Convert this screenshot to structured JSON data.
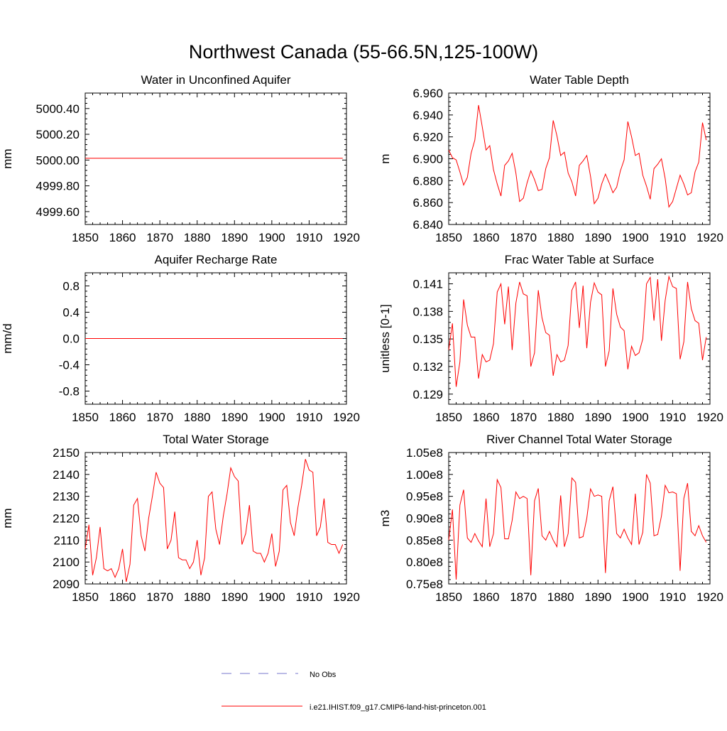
{
  "figure": {
    "title": "Northwest Canada (55-66.5N,125-100W)"
  },
  "legend": {
    "entries": [
      {
        "label": "No Obs",
        "color": "#7777cc",
        "style": "dashed"
      },
      {
        "label": "i.e21.IHIST.f09_g17.CMIP6-land-hist-princeton.001",
        "color": "#ff0000",
        "style": "solid"
      }
    ]
  },
  "colors": {
    "series": "#ff0000",
    "obs": "#7777cc",
    "axis": "#000000"
  },
  "chart_data": [
    {
      "type": "line",
      "title": "Water in Unconfined Aquifer",
      "ylabel": "mm",
      "xlim": [
        1850,
        1920
      ],
      "ylim": [
        4999.5,
        5000.52
      ],
      "xticks": [
        1850,
        1860,
        1870,
        1880,
        1890,
        1900,
        1910,
        1920
      ],
      "xtick_labels": [
        "1850",
        "1860",
        "1870",
        "1880",
        "1890",
        "1900",
        "1910",
        "1920"
      ],
      "yticks": [
        4999.6,
        4999.8,
        5000.0,
        5000.2,
        5000.4
      ],
      "ytick_labels": [
        "4999.60",
        "4999.80",
        "5000.00",
        "5000.20",
        "5000.40"
      ],
      "series": [
        {
          "x_start": 1850,
          "x_step": 1,
          "values": [
            5000.014,
            5000.014,
            5000.014,
            5000.014,
            5000.014,
            5000.014,
            5000.014,
            5000.014,
            5000.014,
            5000.014,
            5000.014,
            5000.014,
            5000.014,
            5000.014,
            5000.014,
            5000.014,
            5000.014,
            5000.014,
            5000.014,
            5000.014,
            5000.014,
            5000.014,
            5000.014,
            5000.014,
            5000.014,
            5000.014,
            5000.014,
            5000.014,
            5000.014,
            5000.014,
            5000.014,
            5000.014,
            5000.014,
            5000.014,
            5000.014,
            5000.014,
            5000.014,
            5000.014,
            5000.014,
            5000.014,
            5000.014,
            5000.014,
            5000.014,
            5000.014,
            5000.014,
            5000.014,
            5000.014,
            5000.014,
            5000.014,
            5000.014,
            5000.014,
            5000.014,
            5000.014,
            5000.014,
            5000.014,
            5000.014,
            5000.014,
            5000.014,
            5000.014,
            5000.014,
            5000.014,
            5000.014,
            5000.014,
            5000.014,
            5000.014,
            5000.014,
            5000.014,
            5000.014,
            5000.014,
            5000.014
          ]
        }
      ]
    },
    {
      "type": "line",
      "title": "Water Table Depth",
      "ylabel": "m",
      "xlim": [
        1850,
        1920
      ],
      "ylim": [
        6.84,
        6.96
      ],
      "xticks": [
        1850,
        1860,
        1870,
        1880,
        1890,
        1900,
        1910,
        1920
      ],
      "xtick_labels": [
        "1850",
        "1860",
        "1870",
        "1880",
        "1890",
        "1900",
        "1910",
        "1920"
      ],
      "yticks": [
        6.84,
        6.86,
        6.88,
        6.9,
        6.92,
        6.94,
        6.96
      ],
      "ytick_labels": [
        "6.840",
        "6.860",
        "6.880",
        "6.900",
        "6.920",
        "6.940",
        "6.960"
      ],
      "series": [
        {
          "x_start": 1850,
          "x_step": 1,
          "values": [
            6.908,
            6.901,
            6.899,
            6.888,
            6.876,
            6.883,
            6.905,
            6.917,
            6.949,
            6.929,
            6.908,
            6.912,
            6.89,
            6.877,
            6.866,
            6.894,
            6.898,
            6.905,
            6.887,
            6.861,
            6.864,
            6.878,
            6.889,
            6.881,
            6.871,
            6.872,
            6.891,
            6.901,
            6.935,
            6.921,
            6.903,
            6.906,
            6.887,
            6.879,
            6.866,
            6.894,
            6.898,
            6.903,
            6.884,
            6.859,
            6.864,
            6.877,
            6.886,
            6.878,
            6.869,
            6.874,
            6.889,
            6.899,
            6.934,
            6.92,
            6.903,
            6.905,
            6.885,
            6.875,
            6.863,
            6.891,
            6.895,
            6.9,
            6.882,
            6.856,
            6.861,
            6.873,
            6.885,
            6.877,
            6.867,
            6.869,
            6.888,
            6.897,
            6.933,
            6.917
          ]
        }
      ]
    },
    {
      "type": "line",
      "title": "Aquifer Recharge Rate",
      "ylabel": "mm/d",
      "xlim": [
        1850,
        1920
      ],
      "ylim": [
        -1.0,
        1.0
      ],
      "xticks": [
        1850,
        1860,
        1870,
        1880,
        1890,
        1900,
        1910,
        1920
      ],
      "xtick_labels": [
        "1850",
        "1860",
        "1870",
        "1880",
        "1890",
        "1900",
        "1910",
        "1920"
      ],
      "yticks": [
        -0.8,
        -0.4,
        0.0,
        0.4,
        0.8
      ],
      "ytick_labels": [
        "-0.8",
        "-0.4",
        "0.0",
        "0.4",
        "0.8"
      ],
      "series": [
        {
          "x_start": 1850,
          "x_step": 1,
          "values": [
            0,
            0,
            0,
            0,
            0,
            0,
            0,
            0,
            0,
            0,
            0,
            0,
            0,
            0,
            0,
            0,
            0,
            0,
            0,
            0,
            0,
            0,
            0,
            0,
            0,
            0,
            0,
            0,
            0,
            0,
            0,
            0,
            0,
            0,
            0,
            0,
            0,
            0,
            0,
            0,
            0,
            0,
            0,
            0,
            0,
            0,
            0,
            0,
            0,
            0,
            0,
            0,
            0,
            0,
            0,
            0,
            0,
            0,
            0,
            0,
            0,
            0,
            0,
            0,
            0,
            0,
            0,
            0,
            0,
            0
          ]
        }
      ]
    },
    {
      "type": "line",
      "title": "Frac Water Table at Surface",
      "ylabel": "unitless [0-1]",
      "xlim": [
        1850,
        1920
      ],
      "ylim": [
        0.1279,
        0.1422
      ],
      "xticks": [
        1850,
        1860,
        1870,
        1880,
        1890,
        1900,
        1910,
        1920
      ],
      "xtick_labels": [
        "1850",
        "1860",
        "1870",
        "1880",
        "1890",
        "1900",
        "1910",
        "1920"
      ],
      "yticks": [
        0.129,
        0.132,
        0.135,
        0.138,
        0.141
      ],
      "ytick_labels": [
        "0.129",
        "0.132",
        "0.135",
        "0.138",
        "0.141"
      ],
      "series": [
        {
          "x_start": 1850,
          "x_step": 1,
          "values": [
            0.1338,
            0.1367,
            0.1298,
            0.1325,
            0.1393,
            0.1365,
            0.1352,
            0.1352,
            0.1307,
            0.1333,
            0.1325,
            0.1327,
            0.1345,
            0.1401,
            0.141,
            0.1366,
            0.1407,
            0.1338,
            0.1389,
            0.1412,
            0.1399,
            0.1397,
            0.132,
            0.1335,
            0.1403,
            0.1373,
            0.1357,
            0.1354,
            0.131,
            0.1333,
            0.1325,
            0.1327,
            0.1343,
            0.1403,
            0.1412,
            0.1362,
            0.1408,
            0.134,
            0.139,
            0.1411,
            0.1401,
            0.1398,
            0.132,
            0.1337,
            0.1405,
            0.1377,
            0.1363,
            0.1359,
            0.1317,
            0.1342,
            0.1332,
            0.1335,
            0.135,
            0.141,
            0.1417,
            0.137,
            0.1415,
            0.1348,
            0.1392,
            0.1418,
            0.1407,
            0.1405,
            0.1328,
            0.1347,
            0.1412,
            0.1383,
            0.137,
            0.1367,
            0.1327,
            0.1352
          ]
        }
      ]
    },
    {
      "type": "line",
      "title": "Total Water Storage",
      "ylabel": "mm",
      "xlim": [
        1850,
        1920
      ],
      "ylim": [
        2090,
        2150
      ],
      "xticks": [
        1850,
        1860,
        1870,
        1880,
        1890,
        1900,
        1910,
        1920
      ],
      "xtick_labels": [
        "1850",
        "1860",
        "1870",
        "1880",
        "1890",
        "1900",
        "1910",
        "1920"
      ],
      "yticks": [
        2090,
        2100,
        2110,
        2120,
        2130,
        2140,
        2150
      ],
      "ytick_labels": [
        "2090",
        "2100",
        "2110",
        "2120",
        "2130",
        "2140",
        "2150"
      ],
      "series": [
        {
          "x_start": 1850,
          "x_step": 1,
          "values": [
            2106,
            2117,
            2094,
            2102,
            2116,
            2097,
            2096,
            2097,
            2093,
            2097,
            2106,
            2091,
            2099,
            2126,
            2129,
            2112,
            2105,
            2120,
            2130,
            2141,
            2136,
            2134,
            2106,
            2110,
            2123,
            2102,
            2101,
            2101,
            2097,
            2100,
            2110,
            2094,
            2102,
            2130,
            2132,
            2115,
            2108,
            2121,
            2131,
            2143,
            2139,
            2137,
            2108,
            2113,
            2126,
            2105,
            2104,
            2104,
            2100,
            2104,
            2113,
            2098,
            2105,
            2133,
            2135,
            2118,
            2112,
            2125,
            2135,
            2147,
            2142,
            2141,
            2112,
            2116,
            2129,
            2109,
            2108,
            2108,
            2104,
            2108
          ]
        }
      ]
    },
    {
      "type": "line",
      "title": "River Channel Total Water Storage",
      "ylabel": "m3",
      "xlim": [
        1850,
        1920
      ],
      "ylim": [
        75000000,
        105000000
      ],
      "xticks": [
        1850,
        1860,
        1870,
        1880,
        1890,
        1900,
        1910,
        1920
      ],
      "xtick_labels": [
        "1850",
        "1860",
        "1870",
        "1880",
        "1890",
        "1900",
        "1910",
        "1920"
      ],
      "yticks": [
        75000000,
        80000000,
        85000000,
        90000000,
        95000000,
        100000000,
        105000000
      ],
      "ytick_labels": [
        "0.75e8",
        "0.80e8",
        "0.85e8",
        "0.90e8",
        "0.95e8",
        "1.00e8",
        "1.05e8"
      ],
      "series": [
        {
          "x_start": 1850,
          "x_step": 1,
          "values": [
            85000000,
            92000000,
            76000000,
            93000000,
            96500000,
            85500000,
            84500000,
            86500000,
            84800000,
            83500000,
            94500000,
            83500000,
            86500000,
            98800000,
            97000000,
            85300000,
            85300000,
            89500000,
            96000000,
            94500000,
            95000000,
            94500000,
            77000000,
            94000000,
            96800000,
            86000000,
            85000000,
            87000000,
            85000000,
            83500000,
            95200000,
            83500000,
            86500000,
            99200000,
            98200000,
            85500000,
            85800000,
            90000000,
            96700000,
            95000000,
            95300000,
            95000000,
            77500000,
            94000000,
            97200000,
            86500000,
            85500000,
            87500000,
            85500000,
            84000000,
            95600000,
            84000000,
            86800000,
            100000000,
            98000000,
            86000000,
            86300000,
            90500000,
            97500000,
            95800000,
            96000000,
            95600000,
            78000000,
            94500000,
            98000000,
            87000000,
            86000000,
            88300000,
            86000000,
            84500000
          ]
        }
      ]
    }
  ]
}
